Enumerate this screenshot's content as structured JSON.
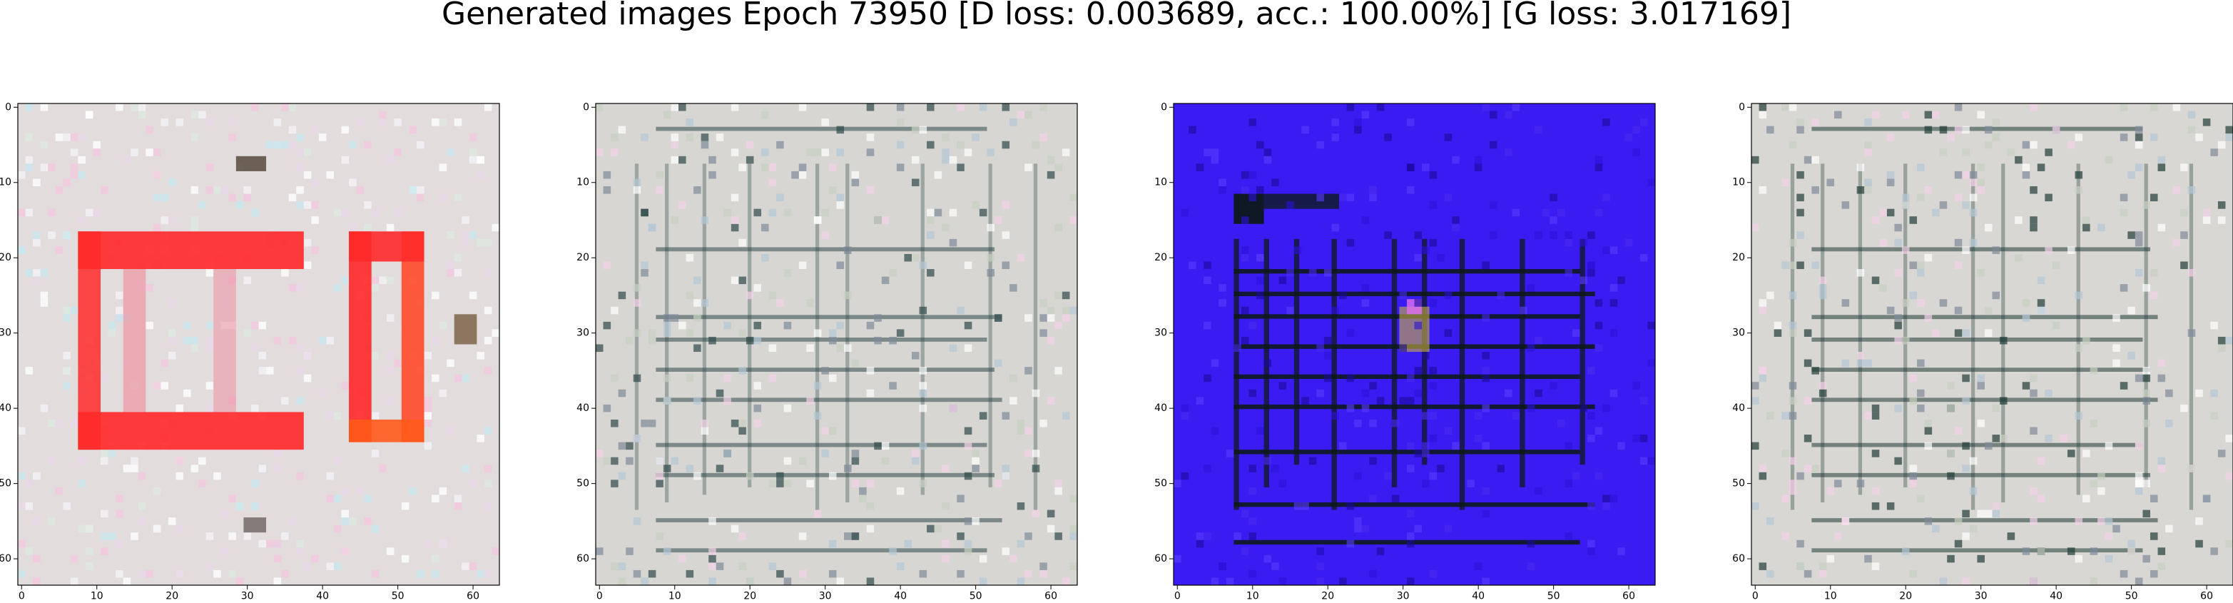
{
  "title": "Generated images Epoch 73950 [D loss: 0.003689, acc.: 100.00%] [G loss: 3.017169]",
  "panels": [
    {
      "x_ticks": [
        "0",
        "10",
        "20",
        "30",
        "40",
        "50",
        "60"
      ],
      "y_ticks": [
        "0",
        "10",
        "20",
        "30",
        "40",
        "50",
        "60"
      ],
      "background": "#e2dcdc",
      "content": "red-rectangle-pattern",
      "accent": "#ff2a2a"
    },
    {
      "x_ticks": [
        "0",
        "10",
        "20",
        "30",
        "40",
        "50",
        "60"
      ],
      "y_ticks": [
        "0",
        "10",
        "20",
        "30",
        "40",
        "50",
        "60"
      ],
      "background": "#d8d6d2",
      "content": "gray-grid-pattern",
      "accent": "#2f4a4a"
    },
    {
      "x_ticks": [
        "0",
        "10",
        "20",
        "30",
        "40",
        "50",
        "60"
      ],
      "y_ticks": [
        "0",
        "10",
        "20",
        "30",
        "40",
        "50",
        "60"
      ],
      "background": "#3a1cf2",
      "content": "blue-grid-pattern",
      "accent": "#0b1a10"
    },
    {
      "x_ticks": [
        "0",
        "10",
        "20",
        "30",
        "40",
        "50",
        "60"
      ],
      "y_ticks": [
        "0",
        "10",
        "20",
        "30",
        "40",
        "50",
        "60"
      ],
      "background": "#d9d7d3",
      "content": "gray-grid-pattern",
      "accent": "#213d38"
    }
  ]
}
